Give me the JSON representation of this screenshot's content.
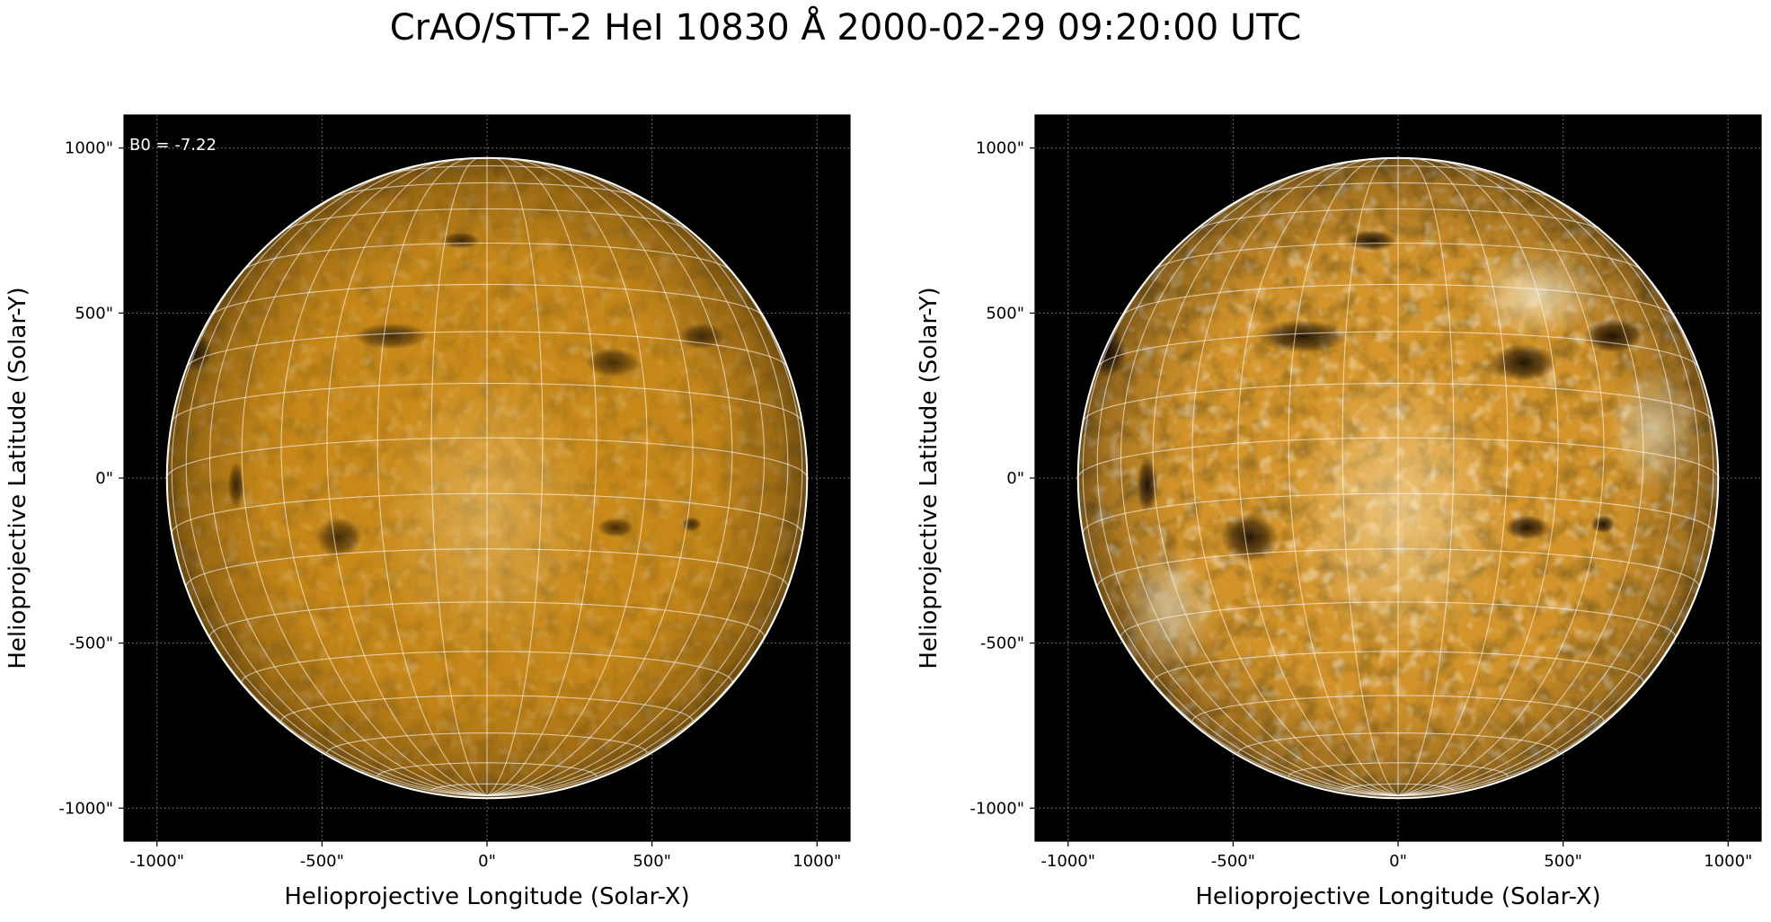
{
  "figure": {
    "title": "CrAO/STT-2 HeI 10830 Å 2000-02-29 09:20:00 UTC"
  },
  "colors": {
    "background": "#000000",
    "disk_base": "#d08e1a",
    "disk_dark": "#3a2204",
    "disk_bright": "#fff1cf",
    "grid": "#ffffff",
    "limb": "#ffffff"
  },
  "panels": [
    {
      "id": "left",
      "annotation": "B0 = -7.22",
      "xlabel": "Helioprojective Longitude (Solar-X)",
      "ylabel": "Helioprojective Latitude (Solar-Y)",
      "xticks": [
        "-1000\"",
        "-500\"",
        "0\"",
        "500\"",
        "1000\""
      ],
      "yticks": [
        "1000\"",
        "500\"",
        "0\"",
        "-500\"",
        "-1000\""
      ],
      "contrast": "normal"
    },
    {
      "id": "right",
      "annotation": "",
      "xlabel": "Helioprojective Longitude (Solar-X)",
      "ylabel": "Helioprojective Latitude (Solar-Y)",
      "xticks": [
        "-1000\"",
        "-500\"",
        "0\"",
        "500\"",
        "1000\""
      ],
      "yticks": [
        "1000\"",
        "500\"",
        "0\"",
        "-500\"",
        "-1000\""
      ],
      "contrast": "enhanced"
    }
  ],
  "axes": {
    "xlim": [
      -1100,
      1100
    ],
    "ylim": [
      -1100,
      1100
    ],
    "tick_values": [
      -1000,
      -500,
      0,
      500,
      1000
    ],
    "solar_radius_arcsec": 970,
    "b0_deg": -7.22,
    "grid": true
  },
  "features": [
    {
      "name": "dark-filament-sw",
      "x": -450,
      "y": -180
    },
    {
      "name": "dark-filament-se",
      "x": 390,
      "y": -150
    },
    {
      "name": "dark-filament-se-small",
      "x": 620,
      "y": -140
    },
    {
      "name": "dark-region-n-west",
      "x": -290,
      "y": 430
    },
    {
      "name": "dark-region-n-center",
      "x": 380,
      "y": 350
    },
    {
      "name": "dark-region-ne",
      "x": 650,
      "y": 430
    },
    {
      "name": "dark-region-n-top",
      "x": -80,
      "y": 720
    },
    {
      "name": "dark-region-nw-limb",
      "x": -880,
      "y": 380
    },
    {
      "name": "dark-region-w-limb",
      "x": -760,
      "y": -20
    }
  ]
}
